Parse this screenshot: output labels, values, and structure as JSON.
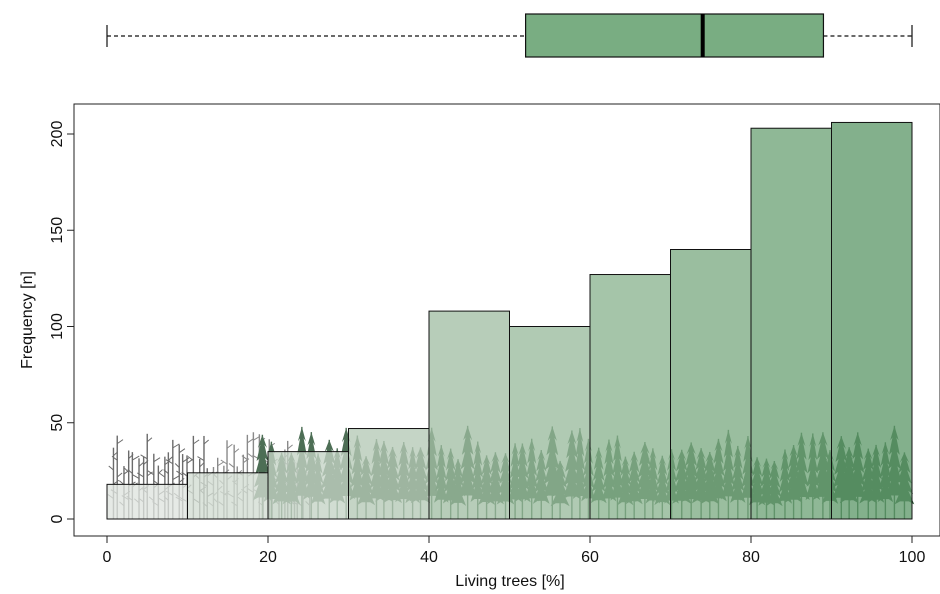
{
  "chart_data": {
    "type": "histogram",
    "title": "",
    "xlabel": "Living trees [%]",
    "ylabel": "Frequency [n]",
    "xlim": [
      0,
      100
    ],
    "ylim": [
      0,
      210
    ],
    "x_ticks": [
      0,
      20,
      40,
      60,
      80,
      100
    ],
    "y_ticks": [
      0,
      50,
      100,
      150,
      200
    ],
    "bins": [
      {
        "start": 0,
        "end": 10,
        "value": 18
      },
      {
        "start": 10,
        "end": 20,
        "value": 24
      },
      {
        "start": 20,
        "end": 30,
        "value": 35
      },
      {
        "start": 30,
        "end": 40,
        "value": 47
      },
      {
        "start": 40,
        "end": 50,
        "value": 108
      },
      {
        "start": 50,
        "end": 60,
        "value": 100
      },
      {
        "start": 60,
        "end": 70,
        "value": 127
      },
      {
        "start": 70,
        "end": 80,
        "value": 140
      },
      {
        "start": 80,
        "end": 90,
        "value": 203
      },
      {
        "start": 90,
        "end": 100,
        "value": 206
      }
    ],
    "boxplot": {
      "min": 0,
      "q1": 52,
      "median": 74,
      "q3": 89,
      "max": 100
    },
    "bar_colors": [
      "#dfe4df",
      "#d2dcd2",
      "#c4d3c5",
      "#b5c9b6",
      "#a3bfa5",
      "#9abb9d",
      "#8cb591",
      "#7eac84",
      "#6fa478",
      "#609a6b"
    ],
    "box_color": "#79ad82",
    "grid": false
  }
}
